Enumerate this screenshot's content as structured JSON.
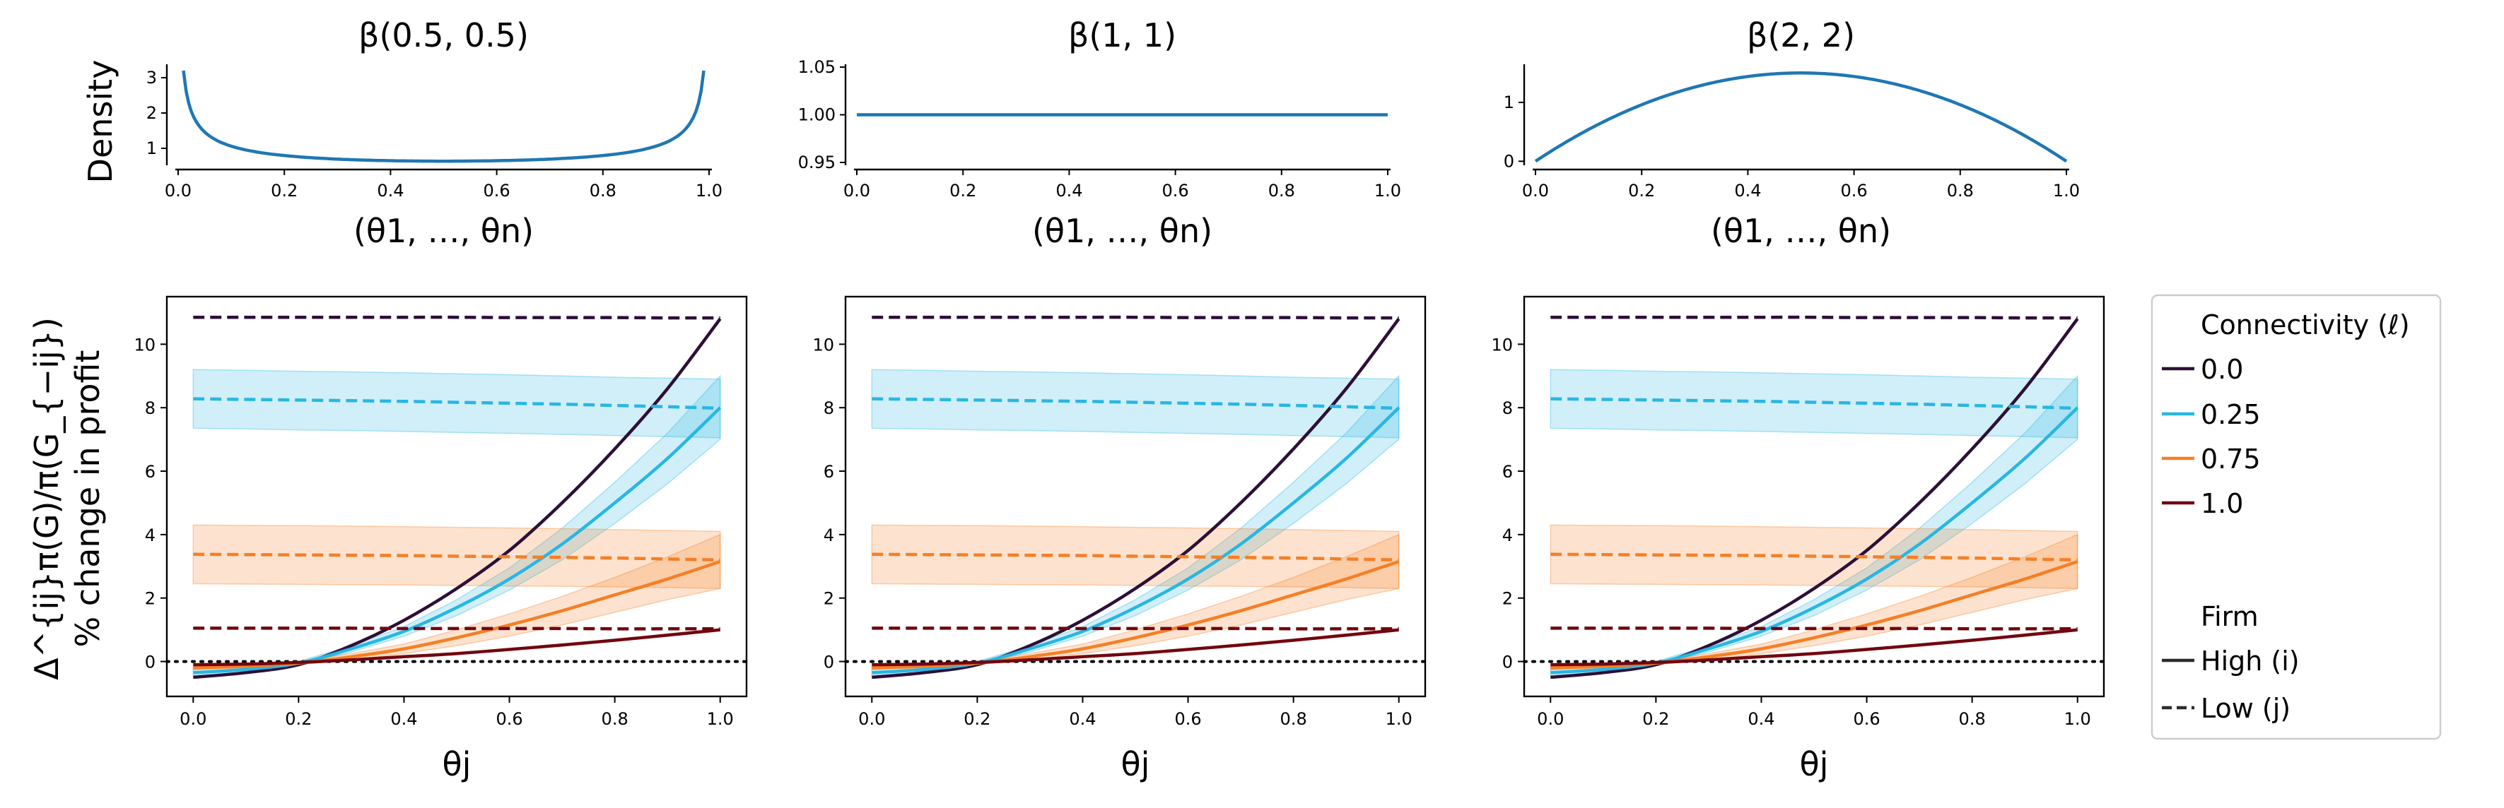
{
  "figure": {
    "density_ylabel": "Density",
    "main_ylabel_line1": "Δ^{ij}π(G)/π(G_{−ij})",
    "main_ylabel_line2": "% change in profit",
    "legend": {
      "title_connectivity": "Connectivity (ℓ)",
      "title_firm": "Firm",
      "connectivity_items": [
        {
          "label": "0.0",
          "color": "#2d0f37"
        },
        {
          "label": "0.25",
          "color": "#29b6e3"
        },
        {
          "label": "0.75",
          "color": "#f57f26"
        },
        {
          "label": "1.0",
          "color": "#72060f"
        }
      ],
      "firm_items": [
        {
          "label": "High (i)",
          "style": "solid"
        },
        {
          "label": "Low (j)",
          "style": "dashed"
        }
      ]
    }
  },
  "chart_data": [
    {
      "type": "line",
      "panel": "density",
      "col": 0,
      "title": "β(0.5, 0.5)",
      "xlabel": "(θ1, …, θn)",
      "alpha": 0.5,
      "beta": 0.5,
      "xlim": [
        0,
        1
      ],
      "ylim": [
        0.6,
        3.3
      ],
      "yticks": [
        1,
        2,
        3
      ],
      "yticklabels": [
        "1",
        "2",
        "3"
      ],
      "xticks": [
        0.0,
        0.2,
        0.4,
        0.6,
        0.8,
        1.0
      ],
      "xticklabels": [
        "0.0",
        "0.2",
        "0.4",
        "0.6",
        "0.8",
        "1.0"
      ],
      "x_range": [
        0.01,
        0.99
      ],
      "color": "#1f77b4"
    },
    {
      "type": "line",
      "panel": "density",
      "col": 1,
      "title": "β(1, 1)",
      "xlabel": "(θ1, …, θn)",
      "alpha": 1,
      "beta": 1,
      "xlim": [
        0,
        1
      ],
      "ylim": [
        0.95,
        1.05
      ],
      "yticks": [
        0.95,
        1.0,
        1.05
      ],
      "yticklabels": [
        "0.95",
        "1.00",
        "1.05"
      ],
      "xticks": [
        0.0,
        0.2,
        0.4,
        0.6,
        0.8,
        1.0
      ],
      "xticklabels": [
        "0.0",
        "0.2",
        "0.4",
        "0.6",
        "0.8",
        "1.0"
      ],
      "x_range": [
        0.0,
        1.0
      ],
      "color": "#1f77b4"
    },
    {
      "type": "line",
      "panel": "density",
      "col": 2,
      "title": "β(2, 2)",
      "xlabel": "(θ1, …, θn)",
      "alpha": 2,
      "beta": 2,
      "xlim": [
        0,
        1
      ],
      "ylim": [
        -0.02,
        1.6
      ],
      "yticks": [
        0,
        1
      ],
      "yticklabels": [
        "0",
        "1"
      ],
      "xticks": [
        0.0,
        0.2,
        0.4,
        0.6,
        0.8,
        1.0
      ],
      "xticklabels": [
        "0.0",
        "0.2",
        "0.4",
        "0.6",
        "0.8",
        "1.0"
      ],
      "x_range": [
        0.0,
        1.0
      ],
      "color": "#1f77b4"
    },
    {
      "type": "line",
      "panel": "profit",
      "col": 0,
      "xlabel": "θj",
      "xlim": [
        -0.05,
        1.05
      ],
      "ylim": [
        -1.1,
        11.5
      ],
      "xticks": [
        0.0,
        0.2,
        0.4,
        0.6,
        0.8,
        1.0
      ],
      "xticklabels": [
        "0.0",
        "0.2",
        "0.4",
        "0.6",
        "0.8",
        "1.0"
      ],
      "yticks": [
        0,
        2,
        4,
        6,
        8,
        10
      ],
      "yticklabels": [
        "0",
        "2",
        "4",
        "6",
        "8",
        "10"
      ],
      "zero_line": true,
      "x": [
        0.0,
        0.1,
        0.2,
        0.3,
        0.4,
        0.5,
        0.6,
        0.7,
        0.8,
        0.9,
        1.0
      ],
      "series": [
        {
          "name": "0.0",
          "firm": "High (i)",
          "color": "#2d0f37",
          "dash": false,
          "y": [
            -0.5,
            -0.35,
            -0.1,
            0.5,
            1.3,
            2.3,
            3.5,
            5.0,
            6.7,
            8.6,
            10.8
          ]
        },
        {
          "name": "0.25",
          "firm": "High (i)",
          "color": "#29b6e3",
          "dash": false,
          "y": [
            -0.35,
            -0.25,
            -0.05,
            0.4,
            0.95,
            1.7,
            2.6,
            3.7,
            5.0,
            6.4,
            8.0
          ],
          "band_low": [
            -0.45,
            -0.33,
            -0.1,
            0.3,
            0.8,
            1.45,
            2.25,
            3.2,
            4.35,
            5.6,
            7.0
          ],
          "band_high": [
            -0.25,
            -0.17,
            0.0,
            0.5,
            1.1,
            1.95,
            2.95,
            4.2,
            5.65,
            7.2,
            9.0
          ]
        },
        {
          "name": "0.75",
          "firm": "High (i)",
          "color": "#f57f26",
          "dash": false,
          "y": [
            -0.2,
            -0.15,
            -0.05,
            0.15,
            0.4,
            0.75,
            1.15,
            1.6,
            2.1,
            2.6,
            3.15
          ],
          "band_low": [
            -0.25,
            -0.2,
            -0.1,
            0.05,
            0.25,
            0.5,
            0.8,
            1.15,
            1.55,
            1.95,
            2.3
          ],
          "band_high": [
            -0.15,
            -0.1,
            0.0,
            0.25,
            0.55,
            1.0,
            1.5,
            2.05,
            2.65,
            3.3,
            4.0
          ]
        },
        {
          "name": "1.0",
          "firm": "High (i)",
          "color": "#72060f",
          "dash": false,
          "y": [
            -0.1,
            -0.08,
            -0.03,
            0.05,
            0.15,
            0.25,
            0.38,
            0.52,
            0.67,
            0.83,
            1.0
          ]
        },
        {
          "name": "0.0",
          "firm": "Low (j)",
          "color": "#2d0f37",
          "dash": true,
          "y": [
            10.85,
            10.85,
            10.85,
            10.85,
            10.85,
            10.85,
            10.84,
            10.84,
            10.84,
            10.83,
            10.83
          ]
        },
        {
          "name": "0.25",
          "firm": "Low (j)",
          "color": "#29b6e3",
          "dash": true,
          "y": [
            8.28,
            8.26,
            8.24,
            8.22,
            8.2,
            8.17,
            8.14,
            8.11,
            8.07,
            8.03,
            7.98
          ],
          "band_low": [
            7.35,
            7.33,
            7.3,
            7.28,
            7.25,
            7.22,
            7.19,
            7.16,
            7.12,
            7.09,
            7.05
          ],
          "band_high": [
            9.2,
            9.18,
            9.15,
            9.13,
            9.1,
            9.07,
            9.04,
            9.0,
            8.96,
            8.93,
            8.9
          ]
        },
        {
          "name": "0.75",
          "firm": "Low (j)",
          "color": "#f57f26",
          "dash": true,
          "y": [
            3.38,
            3.37,
            3.36,
            3.35,
            3.34,
            3.32,
            3.3,
            3.28,
            3.26,
            3.23,
            3.2
          ],
          "band_low": [
            2.45,
            2.44,
            2.43,
            2.42,
            2.41,
            2.4,
            2.38,
            2.37,
            2.35,
            2.33,
            2.3
          ],
          "band_high": [
            4.3,
            4.29,
            4.28,
            4.27,
            4.25,
            4.23,
            4.21,
            4.19,
            4.16,
            4.13,
            4.1
          ]
        },
        {
          "name": "1.0",
          "firm": "Low (j)",
          "color": "#72060f",
          "dash": true,
          "y": [
            1.05,
            1.05,
            1.05,
            1.05,
            1.04,
            1.04,
            1.04,
            1.04,
            1.03,
            1.03,
            1.03
          ]
        }
      ]
    },
    {
      "type": "line",
      "panel": "profit",
      "col": 1,
      "xlabel": "θj",
      "xlim": [
        -0.05,
        1.05
      ],
      "ylim": [
        -1.1,
        11.5
      ],
      "xticks": [
        0.0,
        0.2,
        0.4,
        0.6,
        0.8,
        1.0
      ],
      "xticklabels": [
        "0.0",
        "0.2",
        "0.4",
        "0.6",
        "0.8",
        "1.0"
      ],
      "yticks": [
        0,
        2,
        4,
        6,
        8,
        10
      ],
      "yticklabels": [
        "0",
        "2",
        "4",
        "6",
        "8",
        "10"
      ],
      "zero_line": true,
      "x": [
        0.0,
        0.1,
        0.2,
        0.3,
        0.4,
        0.5,
        0.6,
        0.7,
        0.8,
        0.9,
        1.0
      ],
      "series": [
        {
          "name": "0.0",
          "firm": "High (i)",
          "color": "#2d0f37",
          "dash": false,
          "y": [
            -0.5,
            -0.35,
            -0.1,
            0.5,
            1.3,
            2.3,
            3.5,
            5.0,
            6.7,
            8.6,
            10.8
          ]
        },
        {
          "name": "0.25",
          "firm": "High (i)",
          "color": "#29b6e3",
          "dash": false,
          "y": [
            -0.35,
            -0.25,
            -0.05,
            0.4,
            0.95,
            1.7,
            2.6,
            3.7,
            5.0,
            6.4,
            8.0
          ],
          "band_low": [
            -0.45,
            -0.33,
            -0.1,
            0.3,
            0.8,
            1.45,
            2.25,
            3.2,
            4.35,
            5.6,
            7.0
          ],
          "band_high": [
            -0.25,
            -0.17,
            0.0,
            0.5,
            1.1,
            1.95,
            2.95,
            4.2,
            5.65,
            7.2,
            9.0
          ]
        },
        {
          "name": "0.75",
          "firm": "High (i)",
          "color": "#f57f26",
          "dash": false,
          "y": [
            -0.2,
            -0.15,
            -0.05,
            0.15,
            0.4,
            0.75,
            1.15,
            1.6,
            2.1,
            2.6,
            3.15
          ],
          "band_low": [
            -0.25,
            -0.2,
            -0.1,
            0.05,
            0.25,
            0.5,
            0.8,
            1.15,
            1.55,
            1.95,
            2.3
          ],
          "band_high": [
            -0.15,
            -0.1,
            0.0,
            0.25,
            0.55,
            1.0,
            1.5,
            2.05,
            2.65,
            3.3,
            4.0
          ]
        },
        {
          "name": "1.0",
          "firm": "High (i)",
          "color": "#72060f",
          "dash": false,
          "y": [
            -0.1,
            -0.08,
            -0.03,
            0.05,
            0.15,
            0.25,
            0.38,
            0.52,
            0.67,
            0.83,
            1.0
          ]
        },
        {
          "name": "0.0",
          "firm": "Low (j)",
          "color": "#2d0f37",
          "dash": true,
          "y": [
            10.85,
            10.85,
            10.85,
            10.85,
            10.85,
            10.85,
            10.84,
            10.84,
            10.84,
            10.83,
            10.83
          ]
        },
        {
          "name": "0.25",
          "firm": "Low (j)",
          "color": "#29b6e3",
          "dash": true,
          "y": [
            8.28,
            8.26,
            8.24,
            8.22,
            8.2,
            8.17,
            8.14,
            8.11,
            8.07,
            8.03,
            7.98
          ],
          "band_low": [
            7.35,
            7.33,
            7.3,
            7.28,
            7.25,
            7.22,
            7.19,
            7.16,
            7.12,
            7.09,
            7.05
          ],
          "band_high": [
            9.2,
            9.18,
            9.15,
            9.13,
            9.1,
            9.07,
            9.04,
            9.0,
            8.96,
            8.93,
            8.9
          ]
        },
        {
          "name": "0.75",
          "firm": "Low (j)",
          "color": "#f57f26",
          "dash": true,
          "y": [
            3.38,
            3.37,
            3.36,
            3.35,
            3.34,
            3.32,
            3.3,
            3.28,
            3.26,
            3.23,
            3.2
          ],
          "band_low": [
            2.45,
            2.44,
            2.43,
            2.42,
            2.41,
            2.4,
            2.38,
            2.37,
            2.35,
            2.33,
            2.3
          ],
          "band_high": [
            4.3,
            4.29,
            4.28,
            4.27,
            4.25,
            4.23,
            4.21,
            4.19,
            4.16,
            4.13,
            4.1
          ]
        },
        {
          "name": "1.0",
          "firm": "Low (j)",
          "color": "#72060f",
          "dash": true,
          "y": [
            1.05,
            1.05,
            1.05,
            1.05,
            1.04,
            1.04,
            1.04,
            1.04,
            1.03,
            1.03,
            1.03
          ]
        }
      ]
    },
    {
      "type": "line",
      "panel": "profit",
      "col": 2,
      "xlabel": "θj",
      "xlim": [
        -0.05,
        1.05
      ],
      "ylim": [
        -1.1,
        11.5
      ],
      "xticks": [
        0.0,
        0.2,
        0.4,
        0.6,
        0.8,
        1.0
      ],
      "xticklabels": [
        "0.0",
        "0.2",
        "0.4",
        "0.6",
        "0.8",
        "1.0"
      ],
      "yticks": [
        0,
        2,
        4,
        6,
        8,
        10
      ],
      "yticklabels": [
        "0",
        "2",
        "4",
        "6",
        "8",
        "10"
      ],
      "zero_line": true,
      "x": [
        0.0,
        0.1,
        0.2,
        0.3,
        0.4,
        0.5,
        0.6,
        0.7,
        0.8,
        0.9,
        1.0
      ],
      "series": [
        {
          "name": "0.0",
          "firm": "High (i)",
          "color": "#2d0f37",
          "dash": false,
          "y": [
            -0.5,
            -0.35,
            -0.1,
            0.5,
            1.3,
            2.3,
            3.5,
            5.0,
            6.7,
            8.6,
            10.8
          ]
        },
        {
          "name": "0.25",
          "firm": "High (i)",
          "color": "#29b6e3",
          "dash": false,
          "y": [
            -0.35,
            -0.25,
            -0.05,
            0.4,
            0.95,
            1.7,
            2.6,
            3.7,
            5.0,
            6.4,
            8.0
          ],
          "band_low": [
            -0.45,
            -0.33,
            -0.1,
            0.3,
            0.8,
            1.45,
            2.25,
            3.2,
            4.35,
            5.6,
            7.0
          ],
          "band_high": [
            -0.25,
            -0.17,
            0.0,
            0.5,
            1.1,
            1.95,
            2.95,
            4.2,
            5.65,
            7.2,
            9.0
          ]
        },
        {
          "name": "0.75",
          "firm": "High (i)",
          "color": "#f57f26",
          "dash": false,
          "y": [
            -0.2,
            -0.15,
            -0.05,
            0.15,
            0.4,
            0.75,
            1.15,
            1.6,
            2.1,
            2.6,
            3.15
          ],
          "band_low": [
            -0.25,
            -0.2,
            -0.1,
            0.05,
            0.25,
            0.5,
            0.8,
            1.15,
            1.55,
            1.95,
            2.3
          ],
          "band_high": [
            -0.15,
            -0.1,
            0.0,
            0.25,
            0.55,
            1.0,
            1.5,
            2.05,
            2.65,
            3.3,
            4.0
          ]
        },
        {
          "name": "1.0",
          "firm": "High (i)",
          "color": "#72060f",
          "dash": false,
          "y": [
            -0.1,
            -0.08,
            -0.03,
            0.05,
            0.15,
            0.25,
            0.38,
            0.52,
            0.67,
            0.83,
            1.0
          ]
        },
        {
          "name": "0.0",
          "firm": "Low (j)",
          "color": "#2d0f37",
          "dash": true,
          "y": [
            10.85,
            10.85,
            10.85,
            10.85,
            10.85,
            10.85,
            10.84,
            10.84,
            10.84,
            10.83,
            10.83
          ]
        },
        {
          "name": "0.25",
          "firm": "Low (j)",
          "color": "#29b6e3",
          "dash": true,
          "y": [
            8.28,
            8.26,
            8.24,
            8.22,
            8.2,
            8.17,
            8.14,
            8.11,
            8.07,
            8.03,
            7.98
          ],
          "band_low": [
            7.35,
            7.33,
            7.3,
            7.28,
            7.25,
            7.22,
            7.19,
            7.16,
            7.12,
            7.09,
            7.05
          ],
          "band_high": [
            9.2,
            9.18,
            9.15,
            9.13,
            9.1,
            9.07,
            9.04,
            9.0,
            8.96,
            8.93,
            8.9
          ]
        },
        {
          "name": "0.75",
          "firm": "Low (j)",
          "color": "#f57f26",
          "dash": true,
          "y": [
            3.38,
            3.37,
            3.36,
            3.35,
            3.34,
            3.32,
            3.3,
            3.28,
            3.26,
            3.23,
            3.2
          ],
          "band_low": [
            2.45,
            2.44,
            2.43,
            2.42,
            2.41,
            2.4,
            2.38,
            2.37,
            2.35,
            2.33,
            2.3
          ],
          "band_high": [
            4.3,
            4.29,
            4.28,
            4.27,
            4.25,
            4.23,
            4.21,
            4.19,
            4.16,
            4.13,
            4.1
          ]
        },
        {
          "name": "1.0",
          "firm": "Low (j)",
          "color": "#72060f",
          "dash": true,
          "y": [
            1.05,
            1.05,
            1.05,
            1.05,
            1.04,
            1.04,
            1.04,
            1.04,
            1.03,
            1.03,
            1.03
          ]
        }
      ]
    }
  ]
}
